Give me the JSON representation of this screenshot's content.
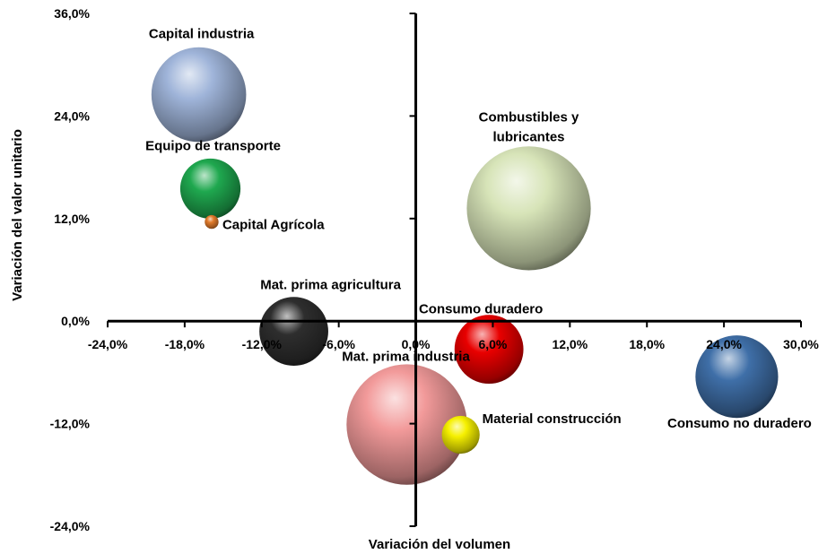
{
  "chart_data": {
    "type": "scatter",
    "subtype": "bubble",
    "title": "",
    "xlabel": "Variación del volumen",
    "ylabel": "Variación del valor unitario",
    "xlim": [
      -24,
      30
    ],
    "ylim": [
      -24,
      36
    ],
    "x_ticks": [
      "-24,0%",
      "-18,0%",
      "-12,0%",
      "-6,0%",
      "0,0%",
      "6,0%",
      "12,0%",
      "18,0%",
      "24,0%",
      "30,0%"
    ],
    "y_ticks": [
      "-24,0%",
      "-12,0%",
      "0,0%",
      "12,0%",
      "24,0%",
      "36,0%"
    ],
    "x_tick_values": [
      -24,
      -18,
      -12,
      -6,
      0,
      6,
      12,
      18,
      24,
      30
    ],
    "y_tick_values": [
      -24,
      -12,
      0,
      12,
      24,
      36
    ],
    "grid": false,
    "legend": "none",
    "series": [
      {
        "name": "Capital industria",
        "x": -16.9,
        "y": 26.5,
        "size": 55,
        "color": "#9fb4d9"
      },
      {
        "name": "Equipo de transporte",
        "x": -16.0,
        "y": 15.5,
        "size": 35,
        "color": "#1fa84f"
      },
      {
        "name": "Capital Agrícola",
        "x": -15.9,
        "y": 11.6,
        "size": 8,
        "color": "#e07a2a"
      },
      {
        "name": "Combustibles y lubricantes",
        "x": 8.8,
        "y": 13.2,
        "size": 72,
        "color": "#d7e4b8"
      },
      {
        "name": "Mat. prima agricultura",
        "x": -9.5,
        "y": -1.2,
        "size": 40,
        "color": "#2e2e2e"
      },
      {
        "name": "Consumo duradero",
        "x": 5.7,
        "y": -3.3,
        "size": 40,
        "color": "#e80000"
      },
      {
        "name": "Consumo no duradero",
        "x": 25.0,
        "y": -6.5,
        "size": 48,
        "color": "#3f6fa8"
      },
      {
        "name": "Mat. prima industria",
        "x": -0.7,
        "y": -12.1,
        "size": 70,
        "color": "#f29a9a"
      },
      {
        "name": "Material construcción",
        "x": 3.5,
        "y": -13.3,
        "size": 22,
        "color": "#f6f000"
      }
    ]
  }
}
